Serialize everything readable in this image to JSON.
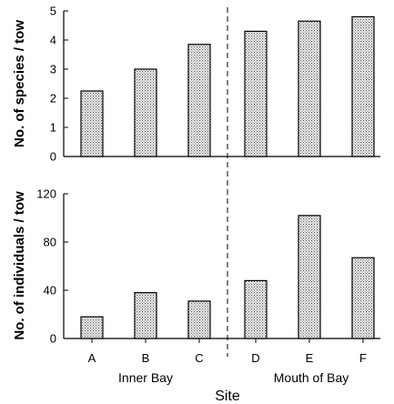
{
  "chart_data": [
    {
      "type": "bar",
      "categories": [
        "A",
        "B",
        "C",
        "D",
        "E",
        "F"
      ],
      "values": [
        2.25,
        3.0,
        3.85,
        4.3,
        4.65,
        4.8
      ],
      "ylabel": "No. of species / tow",
      "ylim": [
        0,
        5
      ],
      "yticks": [
        "0",
        "1",
        "2",
        "3",
        "4",
        "5"
      ],
      "ytick_values": [
        0,
        1,
        2,
        3,
        4,
        5
      ],
      "grid": false,
      "bar_fill": "dotted gray"
    },
    {
      "type": "bar",
      "categories": [
        "A",
        "B",
        "C",
        "D",
        "E",
        "F"
      ],
      "values": [
        18,
        38,
        31,
        48,
        102,
        67
      ],
      "ylabel": "No. of individuals / tow",
      "ylim": [
        0,
        120
      ],
      "yticks": [
        "0",
        "40",
        "80",
        "120"
      ],
      "ytick_values": [
        0,
        40,
        80,
        120
      ],
      "grid": false,
      "bar_fill": "dotted gray"
    }
  ],
  "x_tick_labels": [
    "A",
    "B",
    "C",
    "D",
    "E",
    "F"
  ],
  "group_labels": {
    "inner": "Inner Bay",
    "mouth": "Mouth of Bay"
  },
  "xlabel": "Site",
  "divider": "dashed vertical line between C and D",
  "colors": {
    "axis": "#000000",
    "bar_dot": "#555555",
    "bar_bg": "#ffffff"
  }
}
